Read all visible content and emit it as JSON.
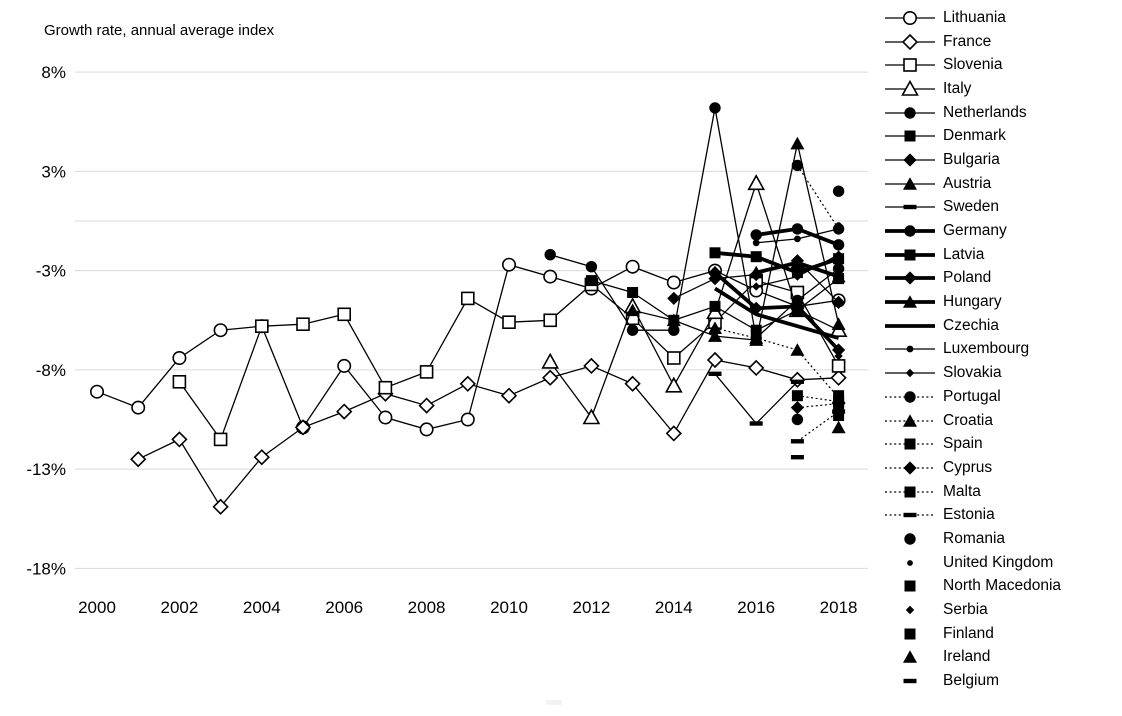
{
  "title": "Growth rate, annual average index",
  "chart_data": {
    "type": "line",
    "title": "Growth rate, annual average index",
    "x": [
      2000,
      2001,
      2002,
      2003,
      2004,
      2005,
      2006,
      2007,
      2008,
      2009,
      2010,
      2011,
      2012,
      2013,
      2014,
      2015,
      2016,
      2017,
      2018
    ],
    "x_tick_labels": [
      "2000",
      "2002",
      "2004",
      "2006",
      "2008",
      "2010",
      "2012",
      "2014",
      "2016",
      "2018"
    ],
    "y_tick_labels": [
      "8%",
      "3%",
      "-3%",
      "-8%",
      "-13%",
      "-18%"
    ],
    "y_tick_values": [
      7.5,
      2.5,
      -2.5,
      -7.5,
      -12.5,
      -17.5
    ],
    "ylim": [
      -17.5,
      7.5
    ],
    "grid": true,
    "zero_line": true,
    "legend_position": "right",
    "axis_color": "#000000",
    "grid_color": "#d9d9d9",
    "series_color": "#000000",
    "series": [
      {
        "name": "Lithuania",
        "marker": "circle-open",
        "line": "thin",
        "values": [
          -8.6,
          -9.4,
          -6.9,
          -5.5,
          -5.3,
          -10.4,
          -7.3,
          -9.9,
          -10.5,
          -10.0,
          -2.2,
          -2.8,
          -3.4,
          -2.3,
          -3.1,
          -2.5,
          -3.5,
          -4.3,
          -4.0
        ]
      },
      {
        "name": "France",
        "marker": "diamond-open",
        "line": "thin",
        "values": [
          null,
          -12.0,
          -11.0,
          -14.4,
          -11.9,
          -10.4,
          -9.6,
          -8.7,
          -9.3,
          -8.2,
          -8.8,
          -7.9,
          -7.3,
          -8.2,
          -10.7,
          -7.0,
          -7.4,
          -8.0,
          -7.9
        ]
      },
      {
        "name": "Slovenia",
        "marker": "square-open",
        "line": "thin",
        "values": [
          null,
          null,
          -8.1,
          -11.0,
          -5.3,
          -5.2,
          -4.7,
          -8.4,
          -7.6,
          -3.9,
          -5.1,
          -5.0,
          -3.2,
          -4.9,
          -6.9,
          -5.1,
          -3.0,
          -3.6,
          -7.3
        ]
      },
      {
        "name": "Italy",
        "marker": "triangle-open",
        "line": "thin",
        "values": [
          null,
          null,
          null,
          null,
          null,
          null,
          null,
          null,
          null,
          null,
          null,
          -7.1,
          -9.9,
          -4.3,
          -8.3,
          -4.6,
          1.9,
          -4.5,
          -5.5
        ]
      },
      {
        "name": "Netherlands",
        "marker": "circle",
        "line": "thin",
        "values": [
          null,
          null,
          null,
          null,
          null,
          null,
          null,
          null,
          null,
          null,
          null,
          -1.7,
          -2.3,
          -5.5,
          -5.5,
          5.7,
          -5.9,
          -4.0,
          -2.4
        ]
      },
      {
        "name": "Denmark",
        "marker": "square",
        "line": "thin",
        "values": [
          null,
          null,
          null,
          null,
          null,
          null,
          null,
          null,
          null,
          null,
          null,
          null,
          -3.0,
          -3.6,
          -5.0,
          -4.3,
          -5.5,
          -4.5,
          -2.9
        ]
      },
      {
        "name": "Bulgaria",
        "marker": "diamond",
        "line": "thin",
        "values": [
          null,
          null,
          null,
          null,
          null,
          null,
          null,
          null,
          null,
          null,
          null,
          null,
          null,
          null,
          -3.9,
          -2.9,
          -2.7,
          -2.0,
          -4.1
        ]
      },
      {
        "name": "Austria",
        "marker": "triangle",
        "line": "thin",
        "values": [
          null,
          null,
          null,
          null,
          null,
          null,
          null,
          null,
          null,
          null,
          null,
          null,
          null,
          -4.5,
          -5.0,
          -5.8,
          -6.0,
          3.9,
          -5.2
        ]
      },
      {
        "name": "Sweden",
        "marker": "dash",
        "line": "thin",
        "values": [
          null,
          null,
          null,
          null,
          null,
          null,
          null,
          null,
          null,
          null,
          null,
          null,
          null,
          null,
          null,
          -7.7,
          -10.2,
          -8.1,
          null
        ]
      },
      {
        "name": "Germany",
        "marker": "circle",
        "line": "thick",
        "values": [
          null,
          null,
          null,
          null,
          null,
          null,
          null,
          null,
          null,
          null,
          null,
          null,
          null,
          null,
          null,
          null,
          -0.7,
          -0.4,
          -1.2
        ]
      },
      {
        "name": "Latvia",
        "marker": "square",
        "line": "thick",
        "values": [
          null,
          null,
          null,
          null,
          null,
          null,
          null,
          null,
          null,
          null,
          null,
          null,
          null,
          null,
          null,
          -1.6,
          -1.8,
          -2.6,
          -1.9
        ]
      },
      {
        "name": "Poland",
        "marker": "diamond",
        "line": "thick",
        "values": [
          null,
          null,
          null,
          null,
          null,
          null,
          null,
          null,
          null,
          null,
          null,
          null,
          null,
          null,
          null,
          -2.6,
          -4.4,
          -4.3,
          -6.5
        ]
      },
      {
        "name": "Hungary",
        "marker": "triangle",
        "line": "thick",
        "values": [
          null,
          null,
          null,
          null,
          null,
          null,
          null,
          null,
          null,
          null,
          null,
          null,
          null,
          null,
          null,
          null,
          -2.6,
          -2.1,
          -2.8
        ]
      },
      {
        "name": "Czechia",
        "marker": "none",
        "line": "thick",
        "values": [
          null,
          null,
          null,
          null,
          null,
          null,
          null,
          null,
          null,
          null,
          null,
          null,
          null,
          null,
          null,
          -3.4,
          -4.7,
          -5.3,
          -5.9
        ]
      },
      {
        "name": "Luxembourg",
        "marker": "circle-sm",
        "line": "thin",
        "values": [
          null,
          null,
          null,
          null,
          null,
          null,
          null,
          null,
          null,
          null,
          null,
          null,
          null,
          null,
          null,
          null,
          -1.1,
          -0.9,
          -0.4
        ]
      },
      {
        "name": "Slovakia",
        "marker": "diamond-sm",
        "line": "thin",
        "values": [
          null,
          null,
          null,
          null,
          null,
          null,
          null,
          null,
          null,
          null,
          null,
          null,
          null,
          null,
          null,
          null,
          -3.3,
          -2.8,
          -1.7
        ]
      },
      {
        "name": "Portugal",
        "marker": "circle",
        "line": "dotted",
        "values": [
          null,
          null,
          null,
          null,
          null,
          null,
          null,
          null,
          null,
          null,
          null,
          null,
          null,
          null,
          null,
          null,
          null,
          2.8,
          -0.4
        ]
      },
      {
        "name": "Croatia",
        "marker": "triangle",
        "line": "dotted",
        "values": [
          null,
          null,
          null,
          null,
          null,
          null,
          null,
          null,
          null,
          null,
          null,
          null,
          null,
          null,
          null,
          -5.4,
          -5.9,
          -6.5,
          -8.9
        ]
      },
      {
        "name": "Spain",
        "marker": "square",
        "line": "dotted",
        "values": [
          null,
          null,
          null,
          null,
          null,
          null,
          null,
          null,
          null,
          null,
          null,
          null,
          null,
          null,
          null,
          null,
          null,
          -8.8,
          -9.1
        ]
      },
      {
        "name": "Cyprus",
        "marker": "diamond",
        "line": "dotted",
        "values": [
          null,
          null,
          null,
          null,
          null,
          null,
          null,
          null,
          null,
          null,
          null,
          null,
          null,
          null,
          null,
          null,
          null,
          -9.4,
          -9.2
        ]
      },
      {
        "name": "Malta",
        "marker": "square",
        "line": "dotted",
        "values": [
          null,
          null,
          null,
          null,
          null,
          null,
          null,
          null,
          null,
          null,
          null,
          null,
          null,
          null,
          null,
          null,
          null,
          null,
          -9.8
        ]
      },
      {
        "name": "Estonia",
        "marker": "dash",
        "line": "dotted",
        "values": [
          null,
          null,
          null,
          null,
          null,
          null,
          null,
          null,
          null,
          null,
          null,
          null,
          null,
          null,
          null,
          null,
          null,
          -11.1,
          -9.6
        ]
      },
      {
        "name": "Romania",
        "marker": "circle",
        "line": "none",
        "values": [
          null,
          null,
          null,
          null,
          null,
          null,
          null,
          null,
          null,
          null,
          null,
          null,
          null,
          null,
          null,
          null,
          null,
          -10.0,
          1.5
        ]
      },
      {
        "name": "United Kingdom",
        "marker": "dot",
        "line": "none",
        "values": [
          null,
          null,
          null,
          null,
          null,
          null,
          null,
          null,
          null,
          null,
          null,
          null,
          null,
          null,
          null,
          null,
          null,
          null,
          -0.2
        ]
      },
      {
        "name": "North Macedonia",
        "marker": "square",
        "line": "none",
        "values": [
          null,
          null,
          null,
          null,
          null,
          null,
          null,
          null,
          null,
          null,
          null,
          null,
          null,
          null,
          null,
          null,
          null,
          null,
          -8.8
        ]
      },
      {
        "name": "Serbia",
        "marker": "diamond-sm",
        "line": "none",
        "values": [
          null,
          null,
          null,
          null,
          null,
          null,
          null,
          null,
          null,
          null,
          null,
          null,
          null,
          null,
          null,
          null,
          null,
          null,
          -6.8
        ]
      },
      {
        "name": "Finland",
        "marker": "square",
        "line": "none",
        "values": [
          null,
          null,
          null,
          null,
          null,
          null,
          null,
          null,
          null,
          null,
          null,
          null,
          null,
          null,
          null,
          null,
          null,
          null,
          -9.4
        ]
      },
      {
        "name": "Ireland",
        "marker": "triangle",
        "line": "none",
        "values": [
          null,
          null,
          null,
          null,
          null,
          null,
          null,
          null,
          null,
          null,
          null,
          null,
          null,
          null,
          null,
          null,
          null,
          null,
          -10.4
        ]
      },
      {
        "name": "Belgium",
        "marker": "dash",
        "line": "none",
        "values": [
          null,
          null,
          null,
          null,
          null,
          null,
          null,
          null,
          null,
          null,
          null,
          null,
          null,
          null,
          null,
          null,
          null,
          -11.9,
          null
        ]
      }
    ]
  }
}
